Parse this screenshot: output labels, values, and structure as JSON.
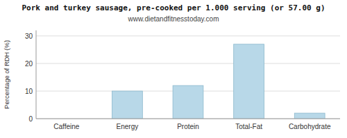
{
  "chart_data": {
    "type": "bar",
    "title": "Pork and turkey sausage, pre-cooked per 1.000 serving (or 57.00 g)",
    "subtitle": "www.dietandfitnesstoday.com",
    "ylabel": "Percentage of RDH (%)",
    "categories": [
      "Caffeine",
      "Energy",
      "Protein",
      "Total-Fat",
      "Carbohydrate"
    ],
    "values": [
      0,
      10,
      12,
      27,
      2
    ],
    "color": "#b8d8e8",
    "ylim": [
      0,
      32
    ],
    "yticks": [
      0,
      10,
      20,
      30
    ],
    "grid": true
  }
}
